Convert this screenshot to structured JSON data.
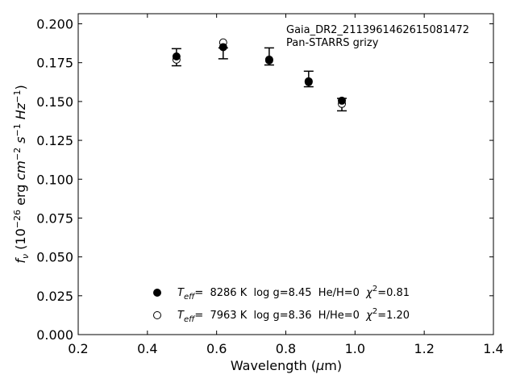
{
  "chart_data": {
    "type": "scatter",
    "xlabel_prefix": "Wavelength (",
    "xlabel_mu": "μ",
    "xlabel_suffix": "m)",
    "ylabel_f": "f",
    "ylabel_nu": "ν",
    "ylabel_paren_open": " (10",
    "ylabel_exp1": "−26",
    "ylabel_erg": " erg ",
    "ylabel_cm": "cm",
    "ylabel_exp2": "−2",
    "ylabel_s": " s",
    "ylabel_exp3": "−1",
    "ylabel_hz": " Hz",
    "ylabel_exp4": "−1",
    "ylabel_paren_close": ")",
    "xlim": [
      0.2,
      1.4
    ],
    "ylim": [
      0.0,
      0.2065
    ],
    "xticks": [
      "0.2",
      "0.4",
      "0.6",
      "0.8",
      "1.0",
      "1.2",
      "1.4"
    ],
    "yticks": [
      "0.000",
      "0.025",
      "0.050",
      "0.075",
      "0.100",
      "0.125",
      "0.150",
      "0.175",
      "0.200"
    ],
    "annotation_lines": [
      "Gaia_DR2_2113961462615081472",
      "Pan-STARRS grizy"
    ],
    "observed": {
      "x": [
        0.484,
        0.619,
        0.752,
        0.866,
        0.962
      ],
      "y": [
        0.1785,
        0.181,
        0.179,
        0.1645,
        0.148
      ],
      "err": [
        0.0055,
        0.0035,
        0.0055,
        0.005,
        0.004
      ]
    },
    "series": [
      {
        "marker": "filled",
        "legend_T": "T",
        "legend_eff": "eff",
        "legend_rest": "=  8286 K  log g=8.45  He/H=0  ",
        "legend_chi": "χ",
        "legend_chi_exp": "2",
        "legend_chi_val": "=0.81",
        "x": [
          0.484,
          0.619,
          0.752,
          0.866,
          0.962
        ],
        "y": [
          0.179,
          0.185,
          0.1765,
          0.1625,
          0.1505
        ]
      },
      {
        "marker": "open",
        "legend_T": "T",
        "legend_eff": "eff",
        "legend_rest": "=  7963 K  log g=8.36  H/He=0  ",
        "legend_chi": "χ",
        "legend_chi_exp": "2",
        "legend_chi_val": "=1.20",
        "x": [
          0.484,
          0.619,
          0.752,
          0.866,
          0.962
        ],
        "y": [
          0.177,
          0.188,
          0.177,
          0.163,
          0.1485
        ]
      }
    ],
    "colors": {
      "marker": "#000000",
      "axis": "#000000",
      "background": "#ffffff"
    },
    "grid": false,
    "legend_position": "lower-center"
  }
}
